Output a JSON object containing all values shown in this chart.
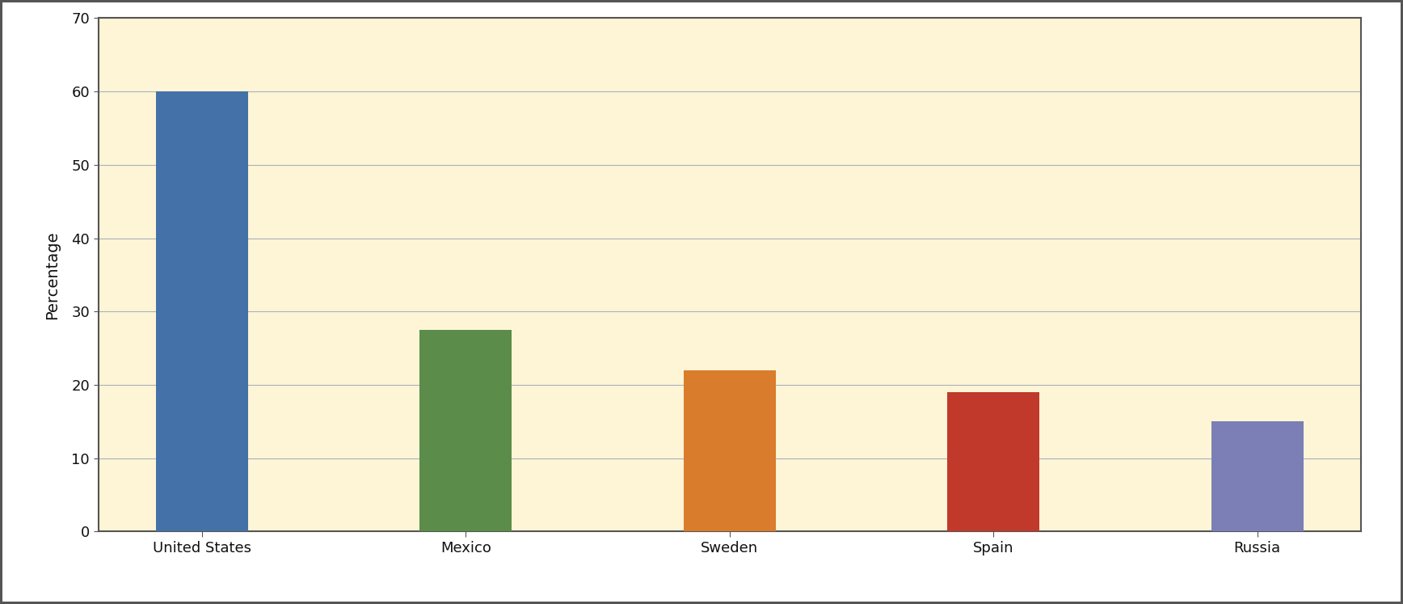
{
  "categories": [
    "United States",
    "Mexico",
    "Sweden",
    "Spain",
    "Russia"
  ],
  "values": [
    60,
    27.5,
    22,
    19,
    15
  ],
  "bar_colors": [
    "#4472a8",
    "#5b8c4a",
    "#d97c2b",
    "#c0392b",
    "#7b7fb5"
  ],
  "ylabel": "Percentage",
  "ylim": [
    0,
    70
  ],
  "yticks": [
    0,
    10,
    20,
    30,
    40,
    50,
    60,
    70
  ],
  "background_color": "#fdf5d6",
  "figure_bg_color": "#ffffff",
  "border_color": "#666666",
  "grid_color": "#aab0bb",
  "bar_width": 0.35,
  "tick_label_fontsize": 13,
  "ylabel_fontsize": 14
}
